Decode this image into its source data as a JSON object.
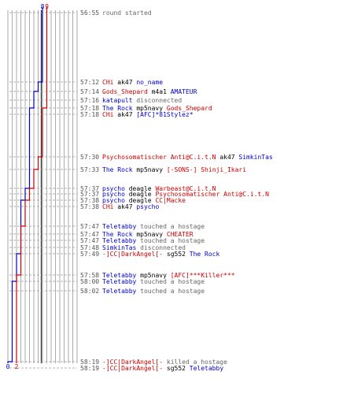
{
  "chart_data": {
    "type": "line",
    "title": "",
    "xlabel": "",
    "ylabel": "",
    "series": [
      {
        "color": "#0000cc",
        "start_count": "8",
        "end_count": "0",
        "steps": [
          {
            "time": "57:12",
            "to": 7
          },
          {
            "time": "57:14",
            "to": 6
          },
          {
            "time": "57:18",
            "to": 5
          },
          {
            "time": "57:37",
            "to": 4
          },
          {
            "time": "57:38",
            "to": 3
          },
          {
            "time": "57:49",
            "to": 2
          },
          {
            "time": "58:00",
            "to": 1
          },
          {
            "time": "58:19",
            "to": 0
          }
        ]
      },
      {
        "color": "#cc0000",
        "start_count": "9",
        "end_count": "2",
        "steps": [
          {
            "time": "57:18",
            "to": 8
          },
          {
            "time": "57:30",
            "to": 7
          },
          {
            "time": "57:33",
            "to": 6
          },
          {
            "time": "57:37",
            "to": 5
          },
          {
            "time": "57:38",
            "to": 4
          },
          {
            "time": "57:47",
            "to": 3
          },
          {
            "time": "57:58",
            "to": 2
          }
        ]
      }
    ],
    "events": [
      {
        "time": "56:55",
        "parts": [
          {
            "t": "round started",
            "c": "#666666"
          }
        ]
      },
      {
        "time": "57:12",
        "parts": [
          {
            "t": "CHi",
            "c": "#cc0000"
          },
          {
            "t": " ak47 ",
            "c": "#000000"
          },
          {
            "t": "no_name",
            "c": "#0000cc"
          }
        ]
      },
      {
        "time": "57:14",
        "parts": [
          {
            "t": "Gods_Shepard",
            "c": "#cc0000"
          },
          {
            "t": " m4a1 ",
            "c": "#000000"
          },
          {
            "t": "AMATEUR",
            "c": "#0000cc"
          }
        ]
      },
      {
        "time": "57:16",
        "parts": [
          {
            "t": "katapult",
            "c": "#0000cc"
          },
          {
            "t": " disconnected",
            "c": "#666666"
          }
        ]
      },
      {
        "time": "57:18",
        "parts": [
          {
            "t": "The Rock",
            "c": "#0000cc"
          },
          {
            "t": " mp5navy ",
            "c": "#000000"
          },
          {
            "t": "Gods_Shepard",
            "c": "#cc0000"
          }
        ]
      },
      {
        "time": "57:18",
        "parts": [
          {
            "t": "CHi",
            "c": "#cc0000"
          },
          {
            "t": " ak47 ",
            "c": "#000000"
          },
          {
            "t": "[AFC]*81Stylez*",
            "c": "#0000cc"
          }
        ]
      },
      {
        "time": "57:30",
        "parts": [
          {
            "t": "Psychosomatischer Anti@C.i.t.N",
            "c": "#cc0000"
          },
          {
            "t": " ak47 ",
            "c": "#000000"
          },
          {
            "t": "SimkinTas",
            "c": "#0000cc"
          }
        ]
      },
      {
        "time": "57:33",
        "parts": [
          {
            "t": "The Rock",
            "c": "#0000cc"
          },
          {
            "t": " mp5navy ",
            "c": "#000000"
          },
          {
            "t": "[-SONS-] Shinji_Ikari",
            "c": "#cc0000"
          }
        ]
      },
      {
        "time": "57:37",
        "parts": [
          {
            "t": "psycho",
            "c": "#0000cc"
          },
          {
            "t": " deagle ",
            "c": "#000000"
          },
          {
            "t": "Warbeast@C.i.t.N",
            "c": "#cc0000"
          }
        ]
      },
      {
        "time": "57:37",
        "parts": [
          {
            "t": "psycho",
            "c": "#0000cc"
          },
          {
            "t": " deagle ",
            "c": "#000000"
          },
          {
            "t": "Psychosomatischer Anti@C.i.t.N",
            "c": "#cc0000"
          }
        ]
      },
      {
        "time": "57:38",
        "parts": [
          {
            "t": "psycho",
            "c": "#0000cc"
          },
          {
            "t": " deagle ",
            "c": "#000000"
          },
          {
            "t": "CC|Macke",
            "c": "#cc0000"
          }
        ]
      },
      {
        "time": "57:38",
        "parts": [
          {
            "t": "CHi",
            "c": "#cc0000"
          },
          {
            "t": " ak47 ",
            "c": "#000000"
          },
          {
            "t": "psycho",
            "c": "#0000cc"
          }
        ]
      },
      {
        "time": "57:47",
        "parts": [
          {
            "t": "Teletabby",
            "c": "#0000cc"
          },
          {
            "t": " touched a hostage",
            "c": "#666666"
          }
        ]
      },
      {
        "time": "57:47",
        "parts": [
          {
            "t": "The Rock",
            "c": "#0000cc"
          },
          {
            "t": " mp5navy ",
            "c": "#000000"
          },
          {
            "t": "CHEATER",
            "c": "#cc0000"
          }
        ]
      },
      {
        "time": "57:47",
        "parts": [
          {
            "t": "Teletabby",
            "c": "#0000cc"
          },
          {
            "t": " touched a hostage",
            "c": "#666666"
          }
        ]
      },
      {
        "time": "57:48",
        "parts": [
          {
            "t": "SimkinTas",
            "c": "#0000cc"
          },
          {
            "t": " disconnected",
            "c": "#666666"
          }
        ]
      },
      {
        "time": "57:49",
        "parts": [
          {
            "t": "-]CC|DarkAngel[-",
            "c": "#cc0000"
          },
          {
            "t": " sg552 ",
            "c": "#000000"
          },
          {
            "t": "The Rock",
            "c": "#0000cc"
          }
        ]
      },
      {
        "time": "57:58",
        "parts": [
          {
            "t": "Teletabby",
            "c": "#0000cc"
          },
          {
            "t": " mp5navy ",
            "c": "#000000"
          },
          {
            "t": "[AFC]***Killer***",
            "c": "#cc0000"
          }
        ]
      },
      {
        "time": "58:00",
        "parts": [
          {
            "t": "Teletabby",
            "c": "#0000cc"
          },
          {
            "t": " touched a hostage",
            "c": "#666666"
          }
        ]
      },
      {
        "time": "58:02",
        "parts": [
          {
            "t": "Teletabby",
            "c": "#0000cc"
          },
          {
            "t": " touched a hostage",
            "c": "#666666"
          }
        ]
      },
      {
        "time": "58:19",
        "parts": [
          {
            "t": "-]CC|DarkAngel[-",
            "c": "#cc0000"
          },
          {
            "t": " killed a hostage",
            "c": "#666666"
          }
        ]
      },
      {
        "time": "58:19",
        "parts": [
          {
            "t": "-]CC|DarkAngel[-",
            "c": "#cc0000"
          },
          {
            "t": " sg552 ",
            "c": "#000000"
          },
          {
            "t": "Teletabby",
            "c": "#0000cc"
          }
        ]
      }
    ]
  }
}
